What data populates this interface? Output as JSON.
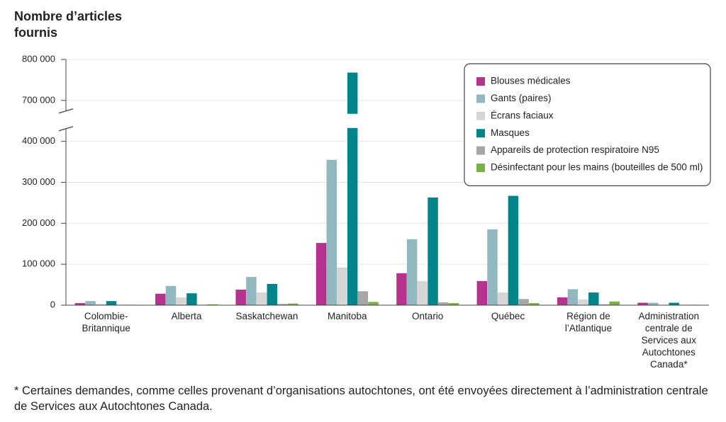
{
  "chart_data": {
    "type": "bar",
    "title": "Nombre d’articles\nfournis",
    "footnote": "* Certaines demandes, comme celles provenant d’organisations autochtones, ont été envoyées directement à l’administration centrale de Services aux Autochtones Canada.",
    "categories": [
      "Colombie-\nBritannique",
      "Alberta",
      "Saskatchewan",
      "Manitoba",
      "Ontario",
      "Québec",
      "Région de\nl’Atlantique",
      "Administration\ncentrale de\nServices aux\nAutochtones\nCanada*"
    ],
    "series": [
      {
        "name": "Blouses médicales",
        "color": "#b5338e",
        "values": [
          5000,
          28000,
          38000,
          152000,
          78000,
          59000,
          19000,
          6000
        ]
      },
      {
        "name": "Gants (paires)",
        "color": "#92b8bf",
        "values": [
          10000,
          47000,
          69000,
          355000,
          161000,
          185000,
          39000,
          6000
        ]
      },
      {
        "name": "Écrans faciaux",
        "color": "#d6d6d6",
        "values": [
          3000,
          19000,
          31000,
          92000,
          59000,
          31000,
          14000,
          1000
        ]
      },
      {
        "name": "Masques",
        "color": "#00868a",
        "values": [
          10000,
          29000,
          52000,
          768000,
          263000,
          267000,
          31000,
          6000
        ]
      },
      {
        "name": "Appareils de protection respiratoire N95",
        "color": "#a6a6a6",
        "values": [
          1000,
          1000,
          3000,
          34000,
          7000,
          15000,
          2000,
          1000
        ]
      },
      {
        "name": "Désinfectant pour les mains (bouteilles de 500 ml)",
        "color": "#77b243",
        "values": [
          1000,
          2000,
          4000,
          8000,
          5000,
          5000,
          9000,
          1000
        ]
      }
    ],
    "ylim": [
      0,
      800000
    ],
    "axis_break": [
      450000,
      650000
    ],
    "yticks": [
      0,
      {
        "value": 100000,
        "label": "100 000"
      },
      {
        "value": 200000,
        "label": "200 000"
      },
      {
        "value": 300000,
        "label": "300 000"
      },
      {
        "value": 400000,
        "label": "400 000"
      },
      {
        "value": 700000,
        "label": "700 000"
      },
      {
        "value": 800000,
        "label": "800 000"
      }
    ],
    "grid": true,
    "legend": "top-right"
  }
}
